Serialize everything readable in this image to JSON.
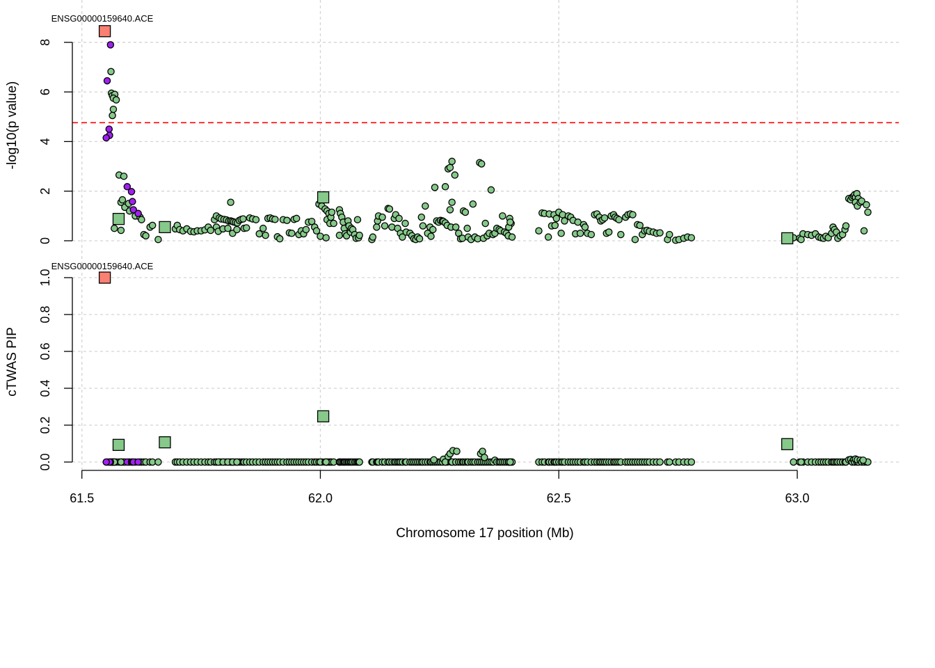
{
  "colors": {
    "snp": "#86c98a",
    "lead_snp": "#a020f0",
    "gene_focus": "#fa8072",
    "gene_other": "#86c98a",
    "threshold": "#ff0000",
    "grid": "#d3d3d3"
  },
  "top_panel": {
    "ylabel": "-log10(p value)",
    "ylim": [
      0,
      8.5
    ],
    "yticks": [
      "0",
      "2",
      "4",
      "6",
      "8"
    ],
    "threshold": 4.76,
    "gene_label": "ENSG00000159640.ACE"
  },
  "bottom_panel": {
    "ylabel": "cTWAS PIP",
    "ylim": [
      0,
      1.0
    ],
    "yticks": [
      "0.0",
      "0.2",
      "0.4",
      "0.6",
      "0.8",
      "1.0"
    ],
    "gene_label": "ENSG00000159640.ACE"
  },
  "xaxis": {
    "label": "Chromosome 17 position (Mb)",
    "xlim": [
      61.48,
      63.21
    ],
    "ticks": [
      "61.5",
      "62.0",
      "62.5",
      "63.0"
    ]
  },
  "chart_data": {
    "type": "scatter",
    "xlabel": "Chromosome 17 position (Mb)",
    "genes": [
      {
        "x": 61.548,
        "logp": 8.45,
        "pip": 1.0,
        "focus": true
      },
      {
        "x": 61.577,
        "logp": 0.88,
        "pip": 0.093,
        "focus": false
      },
      {
        "x": 61.674,
        "logp": 0.55,
        "pip": 0.107,
        "focus": false
      },
      {
        "x": 62.006,
        "logp": 1.75,
        "pip": 0.248,
        "focus": false
      },
      {
        "x": 62.979,
        "logp": 0.1,
        "pip": 0.097,
        "focus": false
      }
    ],
    "lead_snps": [
      {
        "x": 61.553,
        "logp": 6.45
      },
      {
        "x": 61.56,
        "logp": 7.9
      },
      {
        "x": 61.557,
        "logp": 4.5
      },
      {
        "x": 61.558,
        "logp": 4.25
      },
      {
        "x": 61.551,
        "logp": 4.15
      },
      {
        "x": 61.595,
        "logp": 2.18
      },
      {
        "x": 61.604,
        "logp": 1.98
      },
      {
        "x": 61.606,
        "logp": 1.58
      },
      {
        "x": 61.608,
        "logp": 1.25
      },
      {
        "x": 61.618,
        "logp": 1.1
      }
    ],
    "snps": [
      [
        61.561,
        6.82
      ],
      [
        61.562,
        5.95
      ],
      [
        61.564,
        5.85
      ],
      [
        61.569,
        5.9
      ],
      [
        61.566,
        5.75
      ],
      [
        61.572,
        5.68
      ],
      [
        61.566,
        5.3
      ],
      [
        61.564,
        5.05
      ],
      [
        61.578,
        2.65
      ],
      [
        61.588,
        2.6
      ],
      [
        61.582,
        1.55
      ],
      [
        61.585,
        1.65
      ],
      [
        61.59,
        1.35
      ],
      [
        61.598,
        1.5
      ],
      [
        61.6,
        1.2
      ],
      [
        61.612,
        1.0
      ],
      [
        61.622,
        0.95
      ],
      [
        61.625,
        0.85
      ],
      [
        61.568,
        0.5
      ],
      [
        61.582,
        0.42
      ],
      [
        61.63,
        0.25
      ],
      [
        61.634,
        0.2
      ],
      [
        61.643,
        0.55
      ],
      [
        61.648,
        0.62
      ],
      [
        61.66,
        0.05
      ],
      [
        61.696,
        0.48
      ],
      [
        61.7,
        0.62
      ],
      [
        61.705,
        0.45
      ],
      [
        61.712,
        0.4
      ],
      [
        61.72,
        0.48
      ],
      [
        61.728,
        0.38
      ],
      [
        61.735,
        0.36
      ],
      [
        61.742,
        0.4
      ],
      [
        61.75,
        0.4
      ],
      [
        61.758,
        0.44
      ],
      [
        61.765,
        0.55
      ],
      [
        61.77,
        0.42
      ],
      [
        61.778,
        0.85
      ],
      [
        61.782,
        1.0
      ],
      [
        61.788,
        0.92
      ],
      [
        61.792,
        0.88
      ],
      [
        61.798,
        0.86
      ],
      [
        61.803,
        0.84
      ],
      [
        61.808,
        0.8
      ],
      [
        61.812,
        0.8
      ],
      [
        61.815,
        0.78
      ],
      [
        61.818,
        0.76
      ],
      [
        61.822,
        0.74
      ],
      [
        61.826,
        0.72
      ],
      [
        61.83,
        0.82
      ],
      [
        61.834,
        0.86
      ],
      [
        61.838,
        0.88
      ],
      [
        61.812,
        1.55
      ],
      [
        61.782,
        0.55
      ],
      [
        61.786,
        0.38
      ],
      [
        61.796,
        0.48
      ],
      [
        61.806,
        0.5
      ],
      [
        61.816,
        0.3
      ],
      [
        61.825,
        0.45
      ],
      [
        61.84,
        0.5
      ],
      [
        61.845,
        0.52
      ],
      [
        61.852,
        0.92
      ],
      [
        61.858,
        0.88
      ],
      [
        61.865,
        0.85
      ],
      [
        61.872,
        0.28
      ],
      [
        61.88,
        0.5
      ],
      [
        61.885,
        0.22
      ],
      [
        61.89,
        0.9
      ],
      [
        61.895,
        0.92
      ],
      [
        61.9,
        0.88
      ],
      [
        61.905,
        0.86
      ],
      [
        61.91,
        0.16
      ],
      [
        61.915,
        0.08
      ],
      [
        61.922,
        0.85
      ],
      [
        61.93,
        0.82
      ],
      [
        61.935,
        0.32
      ],
      [
        61.94,
        0.3
      ],
      [
        61.945,
        0.86
      ],
      [
        61.95,
        0.9
      ],
      [
        61.955,
        0.25
      ],
      [
        61.96,
        0.4
      ],
      [
        61.965,
        0.28
      ],
      [
        61.97,
        0.45
      ],
      [
        61.975,
        0.75
      ],
      [
        61.982,
        0.78
      ],
      [
        61.988,
        0.55
      ],
      [
        61.992,
        0.4
      ],
      [
        61.997,
        1.48
      ],
      [
        62.003,
        1.4
      ],
      [
        62.0,
        0.18
      ],
      [
        62.01,
        1.28
      ],
      [
        62.014,
        1.2
      ],
      [
        62.018,
        1.1
      ],
      [
        62.014,
        0.85
      ],
      [
        62.02,
        0.7
      ],
      [
        62.022,
        0.95
      ],
      [
        62.024,
        1.15
      ],
      [
        62.012,
        0.12
      ],
      [
        62.028,
        0.7
      ],
      [
        62.04,
        0.22
      ],
      [
        62.04,
        1.25
      ],
      [
        62.042,
        1.1
      ],
      [
        62.045,
        0.95
      ],
      [
        62.048,
        0.75
      ],
      [
        62.05,
        0.5
      ],
      [
        62.052,
        0.28
      ],
      [
        62.055,
        0.2
      ],
      [
        62.058,
        0.8
      ],
      [
        62.06,
        0.6
      ],
      [
        62.063,
        0.35
      ],
      [
        62.065,
        0.5
      ],
      [
        62.068,
        0.45
      ],
      [
        62.072,
        0.25
      ],
      [
        62.075,
        0.1
      ],
      [
        62.078,
        0.85
      ],
      [
        62.08,
        0.12
      ],
      [
        62.082,
        0.22
      ],
      [
        62.108,
        0.05
      ],
      [
        62.11,
        0.15
      ],
      [
        62.118,
        0.55
      ],
      [
        62.12,
        0.8
      ],
      [
        62.122,
        1.0
      ],
      [
        62.13,
        0.95
      ],
      [
        62.135,
        0.6
      ],
      [
        62.142,
        1.3
      ],
      [
        62.145,
        1.28
      ],
      [
        62.15,
        0.55
      ],
      [
        62.155,
        0.9
      ],
      [
        62.158,
        1.05
      ],
      [
        62.162,
        0.5
      ],
      [
        62.165,
        0.9
      ],
      [
        62.168,
        0.3
      ],
      [
        62.172,
        0.15
      ],
      [
        62.178,
        0.7
      ],
      [
        62.18,
        0.35
      ],
      [
        62.188,
        0.3
      ],
      [
        62.192,
        0.2
      ],
      [
        62.196,
        0.08
      ],
      [
        62.2,
        0.05
      ],
      [
        62.204,
        0.15
      ],
      [
        62.208,
        0.08
      ],
      [
        62.212,
        0.95
      ],
      [
        62.215,
        0.6
      ],
      [
        62.22,
        1.4
      ],
      [
        62.225,
        0.3
      ],
      [
        62.23,
        0.55
      ],
      [
        62.232,
        0.18
      ],
      [
        62.236,
        0.45
      ],
      [
        62.24,
        2.15
      ],
      [
        62.244,
        0.8
      ],
      [
        62.248,
        0.75
      ],
      [
        62.252,
        0.82
      ],
      [
        62.256,
        0.8
      ],
      [
        62.258,
        0.78
      ],
      [
        62.262,
        0.72
      ],
      [
        62.266,
        0.62
      ],
      [
        62.262,
        2.18
      ],
      [
        62.268,
        2.9
      ],
      [
        62.272,
        2.95
      ],
      [
        62.276,
        3.2
      ],
      [
        62.282,
        2.65
      ],
      [
        62.272,
        1.25
      ],
      [
        62.274,
        0.55
      ],
      [
        62.276,
        1.55
      ],
      [
        62.284,
        0.55
      ],
      [
        62.29,
        0.3
      ],
      [
        62.294,
        0.08
      ],
      [
        62.298,
        0.1
      ],
      [
        62.3,
        1.2
      ],
      [
        62.304,
        1.15
      ],
      [
        62.308,
        0.5
      ],
      [
        62.31,
        0.15
      ],
      [
        62.316,
        0.05
      ],
      [
        62.32,
        1.48
      ],
      [
        62.324,
        0.15
      ],
      [
        62.33,
        0.08
      ],
      [
        62.334,
        3.15
      ],
      [
        62.338,
        3.1
      ],
      [
        62.342,
        0.1
      ],
      [
        62.346,
        0.7
      ],
      [
        62.35,
        0.2
      ],
      [
        62.354,
        0.3
      ],
      [
        62.358,
        2.05
      ],
      [
        62.362,
        0.25
      ],
      [
        62.366,
        0.3
      ],
      [
        62.37,
        0.5
      ],
      [
        62.375,
        0.45
      ],
      [
        62.378,
        0.4
      ],
      [
        62.382,
        1.0
      ],
      [
        62.386,
        0.35
      ],
      [
        62.39,
        0.3
      ],
      [
        62.394,
        0.2
      ],
      [
        62.397,
        0.9
      ],
      [
        62.4,
        0.7
      ],
      [
        62.402,
        0.15
      ],
      [
        62.395,
        0.55
      ],
      [
        62.398,
        0.75
      ],
      [
        62.458,
        0.4
      ],
      [
        62.465,
        1.12
      ],
      [
        62.47,
        1.1
      ],
      [
        62.478,
        0.15
      ],
      [
        62.48,
        1.08
      ],
      [
        62.485,
        0.6
      ],
      [
        62.49,
        1.05
      ],
      [
        62.492,
        0.62
      ],
      [
        62.495,
        0.9
      ],
      [
        62.5,
        1.15
      ],
      [
        62.505,
        0.3
      ],
      [
        62.508,
        1.05
      ],
      [
        62.512,
        0.8
      ],
      [
        62.52,
        1.0
      ],
      [
        62.525,
        0.95
      ],
      [
        62.53,
        0.82
      ],
      [
        62.535,
        0.28
      ],
      [
        62.54,
        0.75
      ],
      [
        62.545,
        0.3
      ],
      [
        62.552,
        0.65
      ],
      [
        62.555,
        0.55
      ],
      [
        62.56,
        0.3
      ],
      [
        62.568,
        0.25
      ],
      [
        62.575,
        1.05
      ],
      [
        62.58,
        1.08
      ],
      [
        62.585,
        0.95
      ],
      [
        62.588,
        0.8
      ],
      [
        62.592,
        0.85
      ],
      [
        62.596,
        0.92
      ],
      [
        62.6,
        0.3
      ],
      [
        62.605,
        0.35
      ],
      [
        62.61,
        1.0
      ],
      [
        62.615,
        1.05
      ],
      [
        62.618,
        0.95
      ],
      [
        62.622,
        0.9
      ],
      [
        62.626,
        0.85
      ],
      [
        62.63,
        0.25
      ],
      [
        62.64,
        0.95
      ],
      [
        62.645,
        1.05
      ],
      [
        62.65,
        1.08
      ],
      [
        62.655,
        1.05
      ],
      [
        62.66,
        0.05
      ],
      [
        62.665,
        0.65
      ],
      [
        62.67,
        0.62
      ],
      [
        62.675,
        0.25
      ],
      [
        62.68,
        0.4
      ],
      [
        62.685,
        0.42
      ],
      [
        62.69,
        0.38
      ],
      [
        62.698,
        0.35
      ],
      [
        62.705,
        0.3
      ],
      [
        62.712,
        0.32
      ],
      [
        62.728,
        0.05
      ],
      [
        62.732,
        0.25
      ],
      [
        62.745,
        0.02
      ],
      [
        62.752,
        0.05
      ],
      [
        62.762,
        0.1
      ],
      [
        62.77,
        0.15
      ],
      [
        62.778,
        0.12
      ],
      [
        62.992,
        0.12
      ],
      [
        63.005,
        0.1
      ],
      [
        63.012,
        0.28
      ],
      [
        63.022,
        0.25
      ],
      [
        63.03,
        0.22
      ],
      [
        63.038,
        0.28
      ],
      [
        63.045,
        0.15
      ],
      [
        63.05,
        0.12
      ],
      [
        63.055,
        0.1
      ],
      [
        63.06,
        0.18
      ],
      [
        63.065,
        0.12
      ],
      [
        63.072,
        0.3
      ],
      [
        63.075,
        0.55
      ],
      [
        63.078,
        0.45
      ],
      [
        63.082,
        0.35
      ],
      [
        63.085,
        0.1
      ],
      [
        63.09,
        0.2
      ],
      [
        63.095,
        0.25
      ],
      [
        63.1,
        0.45
      ],
      [
        63.102,
        0.6
      ],
      [
        63.008,
        0.05
      ],
      [
        63.108,
        1.7
      ],
      [
        63.112,
        1.65
      ],
      [
        63.115,
        1.75
      ],
      [
        63.118,
        1.8
      ],
      [
        63.12,
        1.85
      ],
      [
        63.122,
        1.75
      ],
      [
        63.125,
        1.9
      ],
      [
        63.128,
        1.7
      ],
      [
        63.122,
        1.55
      ],
      [
        63.126,
        1.4
      ],
      [
        63.132,
        1.55
      ],
      [
        63.135,
        1.6
      ],
      [
        63.14,
        0.4
      ],
      [
        63.145,
        1.45
      ],
      [
        63.148,
        1.15
      ]
    ],
    "nonzero_pip_snps": [
      [
        62.238,
        0.012
      ],
      [
        62.258,
        0.015
      ],
      [
        62.268,
        0.03
      ],
      [
        62.272,
        0.045
      ],
      [
        62.278,
        0.062
      ],
      [
        62.286,
        0.058
      ],
      [
        62.336,
        0.045
      ],
      [
        62.34,
        0.058
      ],
      [
        62.344,
        0.025
      ],
      [
        62.366,
        0.01
      ],
      [
        63.108,
        0.012
      ],
      [
        63.112,
        0.014
      ],
      [
        63.118,
        0.012
      ],
      [
        63.122,
        0.016
      ],
      [
        63.126,
        0.012
      ],
      [
        63.132,
        0.01
      ],
      [
        63.138,
        0.01
      ]
    ]
  }
}
